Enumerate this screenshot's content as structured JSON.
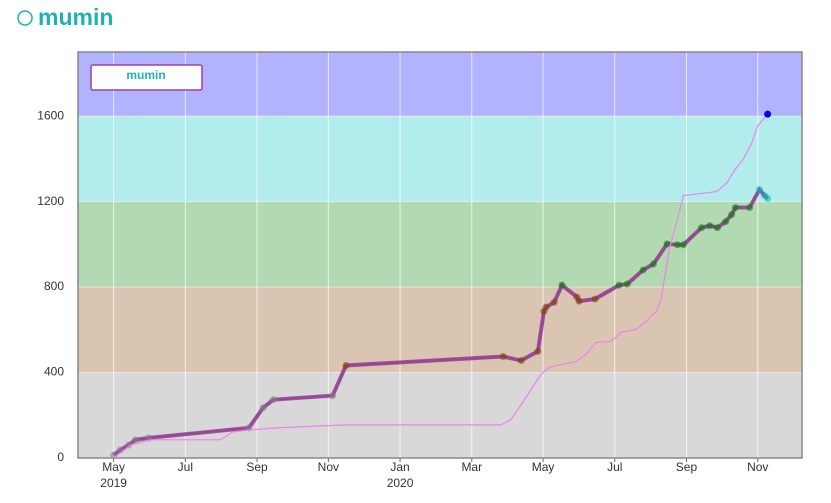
{
  "chart_data": {
    "type": "line",
    "title": "mumin",
    "xlim": [
      2019.25,
      2020.936
    ],
    "ylim": [
      0,
      1900
    ],
    "xticks": [
      {
        "value": 2019.333,
        "label": "May"
      },
      {
        "value": 2019.5,
        "label": "Jul"
      },
      {
        "value": 2019.667,
        "label": "Sep"
      },
      {
        "value": 2019.833,
        "label": "Nov"
      },
      {
        "value": 2020.0,
        "label": "Jan"
      },
      {
        "value": 2020.167,
        "label": "Mar"
      },
      {
        "value": 2020.333,
        "label": "May"
      },
      {
        "value": 2020.5,
        "label": "Jul"
      },
      {
        "value": 2020.667,
        "label": "Sep"
      },
      {
        "value": 2020.833,
        "label": "Nov"
      }
    ],
    "year_labels": [
      {
        "value": 2019.333,
        "label": "2019"
      },
      {
        "value": 2020.0,
        "label": "2020"
      }
    ],
    "yticks": [
      0,
      400,
      800,
      1200,
      1600
    ],
    "grid": true,
    "bands": [
      {
        "from": 0,
        "to": 400,
        "color": "#d8d8d8",
        "dot_color": "#808080"
      },
      {
        "from": 400,
        "to": 800,
        "color": "#d9c5b2",
        "dot_color": "#804000"
      },
      {
        "from": 800,
        "to": 1200,
        "color": "#b2d9b2",
        "dot_color": "#008000"
      },
      {
        "from": 1200,
        "to": 1600,
        "color": "#b2ecec",
        "dot_color": "#00c0c0"
      },
      {
        "from": 1600,
        "to": 1900,
        "color": "#b2b2ff",
        "dot_color": "#0000ff"
      }
    ],
    "legend": "top-left",
    "series": [
      {
        "name": "mumin",
        "color": "#a040a0",
        "markers": true,
        "x": [
          2019.333,
          2019.349,
          2019.368,
          2019.384,
          2019.415,
          2019.648,
          2019.681,
          2019.705,
          2019.843,
          2019.874,
          2020.24,
          2020.282,
          2020.321,
          2020.335,
          2020.34,
          2020.359,
          2020.377,
          2020.412,
          2020.417,
          2020.454,
          2020.51,
          2020.529,
          2020.566,
          2020.59,
          2020.622,
          2020.646,
          2020.66,
          2020.702,
          2020.721,
          2020.739,
          2020.758,
          2020.772,
          2020.781,
          2020.814,
          2020.837,
          2020.849,
          2020.856
        ],
        "values": [
          14,
          38,
          61,
          85,
          94,
          141,
          235,
          273,
          292,
          433,
          475,
          456,
          499,
          687,
          706,
          729,
          809,
          753,
          734,
          744,
          809,
          814,
          880,
          908,
          1002,
          998,
          998,
          1078,
          1087,
          1078,
          1106,
          1139,
          1172,
          1172,
          1256,
          1228,
          1214
        ]
      },
      {
        "color": "#ee82ee",
        "markers": false,
        "last_marker": true,
        "x": [
          2019.333,
          2019.373,
          2019.419,
          2019.582,
          2019.61,
          2019.648,
          2019.711,
          2019.874,
          2020.235,
          2020.258,
          2020.282,
          2020.305,
          2020.328,
          2020.347,
          2020.375,
          2020.41,
          2020.433,
          2020.457,
          2020.492,
          2020.515,
          2020.55,
          2020.573,
          2020.597,
          2020.608,
          2020.627,
          2020.643,
          2020.66,
          2020.702,
          2020.737,
          2020.76,
          2020.779,
          2020.8,
          2020.819,
          2020.832,
          2020.856
        ],
        "values": [
          0,
          61,
          85,
          85,
          122,
          131,
          141,
          155,
          155,
          179,
          249,
          320,
          391,
          424,
          438,
          452,
          485,
          541,
          546,
          588,
          602,
          640,
          687,
          744,
          979,
          1097,
          1228,
          1238,
          1247,
          1285,
          1346,
          1402,
          1473,
          1553,
          1609
        ]
      }
    ]
  }
}
